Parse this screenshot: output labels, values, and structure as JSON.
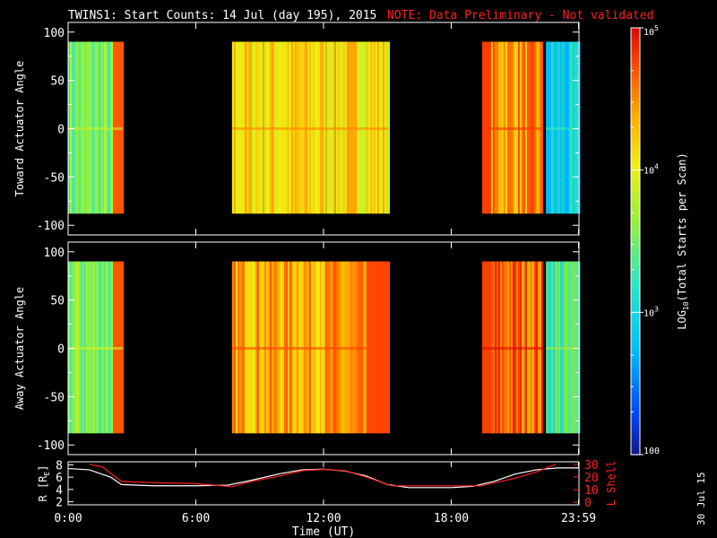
{
  "header": {
    "title": "TWINS1: Start Counts: 14 Jul (day 195), 2015",
    "note": "NOTE: Data Preliminary - Not validated"
  },
  "side_date": "30 Jul 15",
  "colors": {
    "background": "#000000",
    "axis": "#ffffff",
    "note": "#ff2020",
    "ephemeris_r": "#ffffff",
    "ephemeris_l": "#ff2020"
  },
  "chart_data": [
    {
      "type": "heatmap",
      "name": "toward",
      "ylabel": "Toward Actuator Angle",
      "ylim": [
        -110,
        110
      ],
      "yticks": [
        "100",
        "50",
        "0",
        "-50",
        "-100"
      ],
      "ytick_values": [
        100,
        50,
        0,
        -50,
        -100
      ],
      "data_ylim": [
        -88,
        90
      ],
      "x_hours_range": [
        0,
        24
      ],
      "colorscale": "log10 counts, blue (100) to red (1e5)",
      "segments": [
        {
          "start": 0.0,
          "end": 2.55,
          "level": 0.5
        },
        {
          "start": 7.7,
          "end": 15.05,
          "level": 0.72
        },
        {
          "start": 19.45,
          "end": 22.3,
          "level": 0.82
        },
        {
          "start": 22.45,
          "end": 24.0,
          "level": 0.3
        }
      ],
      "gaps": [
        [
          2.55,
          7.7
        ],
        [
          15.05,
          19.45
        ],
        [
          22.3,
          22.45
        ]
      ]
    },
    {
      "type": "heatmap",
      "name": "away",
      "ylabel": "Away Actuator Angle",
      "ylim": [
        -110,
        110
      ],
      "yticks": [
        "100",
        "50",
        "0",
        "-50",
        "-100"
      ],
      "ytick_values": [
        100,
        50,
        0,
        -50,
        -100
      ],
      "data_ylim": [
        -88,
        90
      ],
      "x_hours_range": [
        0,
        24
      ],
      "colorscale": "log10 counts, blue (100) to red (1e5)",
      "segments": [
        {
          "start": 0.0,
          "end": 2.55,
          "level": 0.52
        },
        {
          "start": 7.7,
          "end": 15.05,
          "level": 0.8
        },
        {
          "start": 19.45,
          "end": 22.3,
          "level": 0.88
        },
        {
          "start": 22.45,
          "end": 24.0,
          "level": 0.45
        }
      ],
      "gaps": [
        [
          2.55,
          7.7
        ],
        [
          15.05,
          19.45
        ],
        [
          22.3,
          22.45
        ]
      ]
    },
    {
      "type": "line",
      "name": "ephemeris",
      "xlabel": "Time (UT)",
      "xticks": [
        "0:00",
        "6:00",
        "12:00",
        "18:00",
        "23:59"
      ],
      "xtick_values": [
        0,
        6,
        12,
        18,
        23.98
      ],
      "left_axis": {
        "label": "R [RE]",
        "label_main": "R [R",
        "label_sub": "E",
        "label_end": "]",
        "ylim": [
          1.5,
          8.5
        ],
        "ticks": [
          "8",
          "6",
          "4",
          "2"
        ],
        "tick_values": [
          8,
          6,
          4,
          2
        ]
      },
      "right_axis": {
        "label": "L Shell",
        "ylim": [
          -2,
          32
        ],
        "ticks": [
          "30",
          "20",
          "10",
          "0"
        ],
        "tick_values": [
          30,
          20,
          10,
          0
        ]
      },
      "series": [
        {
          "axis": "left",
          "x": [
            0,
            1,
            2,
            2.5,
            4,
            6,
            7.5,
            8.5,
            10,
            11,
            12,
            13,
            14,
            15,
            16,
            18,
            19,
            20,
            21,
            22,
            23,
            24
          ],
          "y": [
            7.4,
            7.2,
            6.0,
            4.8,
            4.6,
            4.6,
            4.7,
            5.4,
            6.6,
            7.2,
            7.3,
            7.0,
            6.2,
            4.8,
            4.3,
            4.3,
            4.5,
            5.3,
            6.5,
            7.2,
            7.5,
            7.5
          ]
        },
        {
          "axis": "right",
          "x": [
            1.0,
            1.6,
            2.5,
            4,
            6,
            7.7,
            8.5,
            10,
            11,
            12,
            13,
            14,
            15.2,
            17,
            19.4,
            20.2,
            21,
            22,
            22.9
          ],
          "y": [
            30,
            28,
            16.5,
            15.5,
            14.8,
            12.3,
            16,
            21,
            25,
            26,
            25,
            20,
            13,
            13,
            13,
            16,
            19,
            24,
            30
          ]
        }
      ]
    },
    {
      "type": "heatmap",
      "name": "colorbar",
      "label_main": "LOG",
      "label_sub": "10",
      "label_end": "(Total Starts per Scan)",
      "scale": "log",
      "range": [
        100,
        100000
      ],
      "ticks": [
        {
          "value": 100000,
          "base": "10",
          "exp": "5"
        },
        {
          "value": 10000,
          "base": "10",
          "exp": "4"
        },
        {
          "value": 1000,
          "base": "10",
          "exp": "3"
        },
        {
          "value": 100,
          "base": "100",
          "exp": ""
        }
      ]
    }
  ]
}
